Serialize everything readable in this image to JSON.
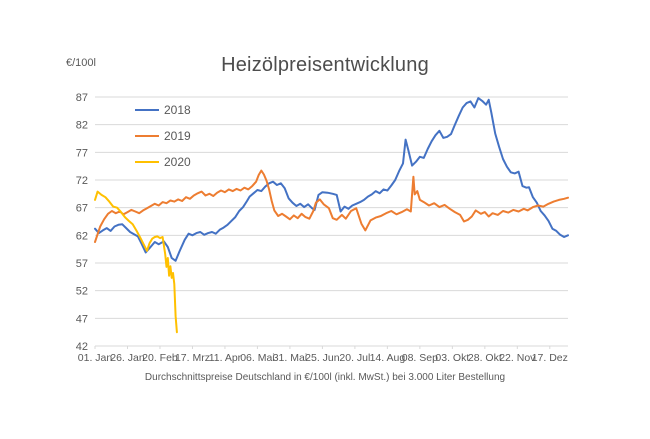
{
  "chart_data": {
    "type": "line",
    "title": "Heizölpreisentwicklung",
    "subtitle": "Durchschnittspreise Deutschland in €/100l (inkl. MwSt.) bei 3.000 Liter Bestellung",
    "ylabel": "€/100l",
    "xlabel": "",
    "ylim": [
      42,
      87
    ],
    "y_ticks": [
      87,
      82,
      77,
      72,
      67,
      62,
      57,
      52,
      47,
      42
    ],
    "x_axis": {
      "tick_labels": [
        "01. Jan",
        "26. Jan",
        "20. Feb",
        "17. Mrz",
        "11. Apr",
        "06. Mai",
        "31. Mai",
        "25. Jun",
        "20. Jul",
        "14. Aug",
        "08. Sep",
        "03. Okt",
        "28. Okt",
        "22. Nov",
        "17. Dez"
      ],
      "tick_days": [
        1,
        26,
        51,
        76,
        101,
        126,
        151,
        176,
        201,
        226,
        251,
        276,
        301,
        326,
        351
      ],
      "range_days": [
        1,
        365
      ]
    },
    "grid": true,
    "legend_position": "inside-top-left",
    "colors": {
      "grid": "#d9d9d9",
      "axis_line": "#d9d9d9",
      "axis_text": "#595959",
      "title_text": "#4d4d4d"
    },
    "series": [
      {
        "name": "2018",
        "color": "#4472C4",
        "points": [
          [
            1,
            63.2
          ],
          [
            4,
            62.4
          ],
          [
            7,
            62.9
          ],
          [
            10,
            63.3
          ],
          [
            13,
            62.8
          ],
          [
            16,
            63.6
          ],
          [
            19,
            63.9
          ],
          [
            22,
            64.0
          ],
          [
            25,
            63.3
          ],
          [
            28,
            62.6
          ],
          [
            31,
            62.2
          ],
          [
            34,
            61.8
          ],
          [
            37,
            60.4
          ],
          [
            40,
            58.9
          ],
          [
            43,
            59.7
          ],
          [
            47,
            60.8
          ],
          [
            50,
            60.4
          ],
          [
            54,
            60.9
          ],
          [
            57,
            59.9
          ],
          [
            60,
            57.9
          ],
          [
            63,
            57.4
          ],
          [
            66,
            59.1
          ],
          [
            70,
            61.2
          ],
          [
            73,
            62.3
          ],
          [
            76,
            62.0
          ],
          [
            79,
            62.4
          ],
          [
            82,
            62.6
          ],
          [
            85,
            62.1
          ],
          [
            88,
            62.4
          ],
          [
            91,
            62.6
          ],
          [
            94,
            62.3
          ],
          [
            97,
            63.0
          ],
          [
            100,
            63.4
          ],
          [
            103,
            63.9
          ],
          [
            106,
            64.6
          ],
          [
            109,
            65.3
          ],
          [
            112,
            66.4
          ],
          [
            115,
            67.1
          ],
          [
            118,
            68.2
          ],
          [
            120,
            69.0
          ],
          [
            123,
            69.6
          ],
          [
            126,
            70.2
          ],
          [
            129,
            70.0
          ],
          [
            132,
            70.8
          ],
          [
            135,
            71.4
          ],
          [
            138,
            71.7
          ],
          [
            141,
            71.1
          ],
          [
            144,
            71.4
          ],
          [
            147,
            70.5
          ],
          [
            150,
            68.7
          ],
          [
            153,
            67.9
          ],
          [
            156,
            67.3
          ],
          [
            159,
            67.7
          ],
          [
            162,
            67.1
          ],
          [
            165,
            67.6
          ],
          [
            168,
            66.9
          ],
          [
            170,
            66.6
          ],
          [
            173,
            69.3
          ],
          [
            176,
            69.8
          ],
          [
            180,
            69.7
          ],
          [
            184,
            69.5
          ],
          [
            187,
            69.3
          ],
          [
            190,
            66.3
          ],
          [
            193,
            67.2
          ],
          [
            196,
            66.8
          ],
          [
            199,
            67.4
          ],
          [
            202,
            67.7
          ],
          [
            205,
            68.0
          ],
          [
            208,
            68.4
          ],
          [
            211,
            69.0
          ],
          [
            214,
            69.4
          ],
          [
            217,
            70.0
          ],
          [
            220,
            69.6
          ],
          [
            223,
            70.3
          ],
          [
            226,
            70.1
          ],
          [
            229,
            71.0
          ],
          [
            232,
            72.0
          ],
          [
            235,
            73.6
          ],
          [
            238,
            75.0
          ],
          [
            240,
            79.3
          ],
          [
            242,
            77.5
          ],
          [
            245,
            74.6
          ],
          [
            248,
            75.3
          ],
          [
            251,
            76.2
          ],
          [
            254,
            76.0
          ],
          [
            257,
            77.6
          ],
          [
            260,
            79.0
          ],
          [
            263,
            80.1
          ],
          [
            266,
            80.9
          ],
          [
            269,
            79.6
          ],
          [
            272,
            79.8
          ],
          [
            275,
            80.3
          ],
          [
            278,
            82.0
          ],
          [
            281,
            83.6
          ],
          [
            284,
            85.1
          ],
          [
            287,
            85.9
          ],
          [
            290,
            86.2
          ],
          [
            293,
            85.1
          ],
          [
            296,
            86.8
          ],
          [
            299,
            86.3
          ],
          [
            302,
            85.6
          ],
          [
            304,
            86.5
          ],
          [
            306,
            84.2
          ],
          [
            309,
            80.4
          ],
          [
            312,
            78.0
          ],
          [
            315,
            75.8
          ],
          [
            318,
            74.4
          ],
          [
            321,
            73.4
          ],
          [
            324,
            73.2
          ],
          [
            327,
            73.5
          ],
          [
            330,
            70.9
          ],
          [
            333,
            70.6
          ],
          [
            335,
            70.7
          ],
          [
            338,
            68.9
          ],
          [
            341,
            67.9
          ],
          [
            344,
            66.4
          ],
          [
            347,
            65.6
          ],
          [
            350,
            64.6
          ],
          [
            353,
            63.2
          ],
          [
            356,
            62.8
          ],
          [
            359,
            62.1
          ],
          [
            362,
            61.7
          ],
          [
            365,
            62.0
          ]
        ]
      },
      {
        "name": "2019",
        "color": "#ED7D31",
        "points": [
          [
            1,
            60.8
          ],
          [
            3,
            62.2
          ],
          [
            5,
            63.6
          ],
          [
            8,
            64.9
          ],
          [
            11,
            65.9
          ],
          [
            14,
            66.4
          ],
          [
            17,
            66.0
          ],
          [
            20,
            66.3
          ],
          [
            23,
            65.8
          ],
          [
            26,
            66.2
          ],
          [
            29,
            66.6
          ],
          [
            32,
            66.3
          ],
          [
            35,
            66.0
          ],
          [
            38,
            66.5
          ],
          [
            41,
            66.9
          ],
          [
            44,
            67.3
          ],
          [
            47,
            67.7
          ],
          [
            50,
            67.4
          ],
          [
            53,
            68.0
          ],
          [
            56,
            67.8
          ],
          [
            59,
            68.3
          ],
          [
            62,
            68.1
          ],
          [
            65,
            68.5
          ],
          [
            68,
            68.2
          ],
          [
            71,
            68.9
          ],
          [
            74,
            68.6
          ],
          [
            77,
            69.2
          ],
          [
            80,
            69.6
          ],
          [
            83,
            69.9
          ],
          [
            86,
            69.2
          ],
          [
            89,
            69.5
          ],
          [
            92,
            69.1
          ],
          [
            95,
            69.7
          ],
          [
            98,
            70.1
          ],
          [
            101,
            69.8
          ],
          [
            104,
            70.3
          ],
          [
            107,
            70.0
          ],
          [
            110,
            70.4
          ],
          [
            113,
            70.1
          ],
          [
            116,
            70.6
          ],
          [
            119,
            70.3
          ],
          [
            122,
            70.9
          ],
          [
            125,
            71.7
          ],
          [
            127,
            72.9
          ],
          [
            129,
            73.7
          ],
          [
            131,
            73.0
          ],
          [
            133,
            71.9
          ],
          [
            135,
            70.3
          ],
          [
            137,
            68.2
          ],
          [
            139,
            66.5
          ],
          [
            142,
            65.5
          ],
          [
            145,
            65.9
          ],
          [
            148,
            65.4
          ],
          [
            151,
            64.9
          ],
          [
            154,
            65.6
          ],
          [
            157,
            65.1
          ],
          [
            160,
            65.9
          ],
          [
            163,
            65.3
          ],
          [
            166,
            65.0
          ],
          [
            169,
            66.4
          ],
          [
            171,
            67.9
          ],
          [
            174,
            68.5
          ],
          [
            177,
            67.6
          ],
          [
            181,
            66.9
          ],
          [
            184,
            65.1
          ],
          [
            187,
            64.8
          ],
          [
            191,
            65.7
          ],
          [
            194,
            65.0
          ],
          [
            198,
            66.4
          ],
          [
            202,
            66.9
          ],
          [
            206,
            64.1
          ],
          [
            209,
            62.9
          ],
          [
            213,
            64.7
          ],
          [
            217,
            65.2
          ],
          [
            221,
            65.5
          ],
          [
            225,
            66.0
          ],
          [
            229,
            66.4
          ],
          [
            233,
            65.8
          ],
          [
            237,
            66.2
          ],
          [
            241,
            66.7
          ],
          [
            244,
            66.3
          ],
          [
            246,
            72.6
          ],
          [
            247,
            69.4
          ],
          [
            249,
            70.0
          ],
          [
            251,
            68.4
          ],
          [
            254,
            68.0
          ],
          [
            258,
            67.4
          ],
          [
            262,
            67.8
          ],
          [
            266,
            67.1
          ],
          [
            270,
            67.5
          ],
          [
            274,
            66.8
          ],
          [
            278,
            66.2
          ],
          [
            282,
            65.7
          ],
          [
            285,
            64.5
          ],
          [
            288,
            64.8
          ],
          [
            291,
            65.4
          ],
          [
            294,
            66.5
          ],
          [
            298,
            65.9
          ],
          [
            301,
            66.2
          ],
          [
            304,
            65.4
          ],
          [
            307,
            66.0
          ],
          [
            311,
            65.7
          ],
          [
            315,
            66.4
          ],
          [
            319,
            66.1
          ],
          [
            323,
            66.6
          ],
          [
            327,
            66.3
          ],
          [
            331,
            66.8
          ],
          [
            334,
            66.5
          ],
          [
            338,
            67.1
          ],
          [
            342,
            67.4
          ],
          [
            346,
            67.2
          ],
          [
            350,
            67.7
          ],
          [
            354,
            68.1
          ],
          [
            358,
            68.4
          ],
          [
            362,
            68.6
          ],
          [
            365,
            68.8
          ]
        ]
      },
      {
        "name": "2020",
        "color": "#FFC000",
        "points": [
          [
            1,
            68.4
          ],
          [
            3,
            69.9
          ],
          [
            6,
            69.3
          ],
          [
            9,
            68.9
          ],
          [
            12,
            68.1
          ],
          [
            15,
            67.2
          ],
          [
            18,
            67.0
          ],
          [
            21,
            66.2
          ],
          [
            24,
            65.3
          ],
          [
            27,
            64.6
          ],
          [
            30,
            64.0
          ],
          [
            33,
            62.8
          ],
          [
            36,
            61.5
          ],
          [
            39,
            60.1
          ],
          [
            41,
            59.2
          ],
          [
            43,
            60.6
          ],
          [
            45,
            61.4
          ],
          [
            47,
            61.7
          ],
          [
            49,
            61.8
          ],
          [
            51,
            61.5
          ],
          [
            53,
            61.7
          ],
          [
            55,
            58.6
          ],
          [
            56,
            56.3
          ],
          [
            57,
            57.9
          ],
          [
            58,
            54.7
          ],
          [
            59,
            56.4
          ],
          [
            60,
            54.3
          ],
          [
            61,
            55.2
          ],
          [
            62,
            53.2
          ],
          [
            63,
            47.4
          ],
          [
            64,
            44.5
          ]
        ]
      }
    ]
  }
}
